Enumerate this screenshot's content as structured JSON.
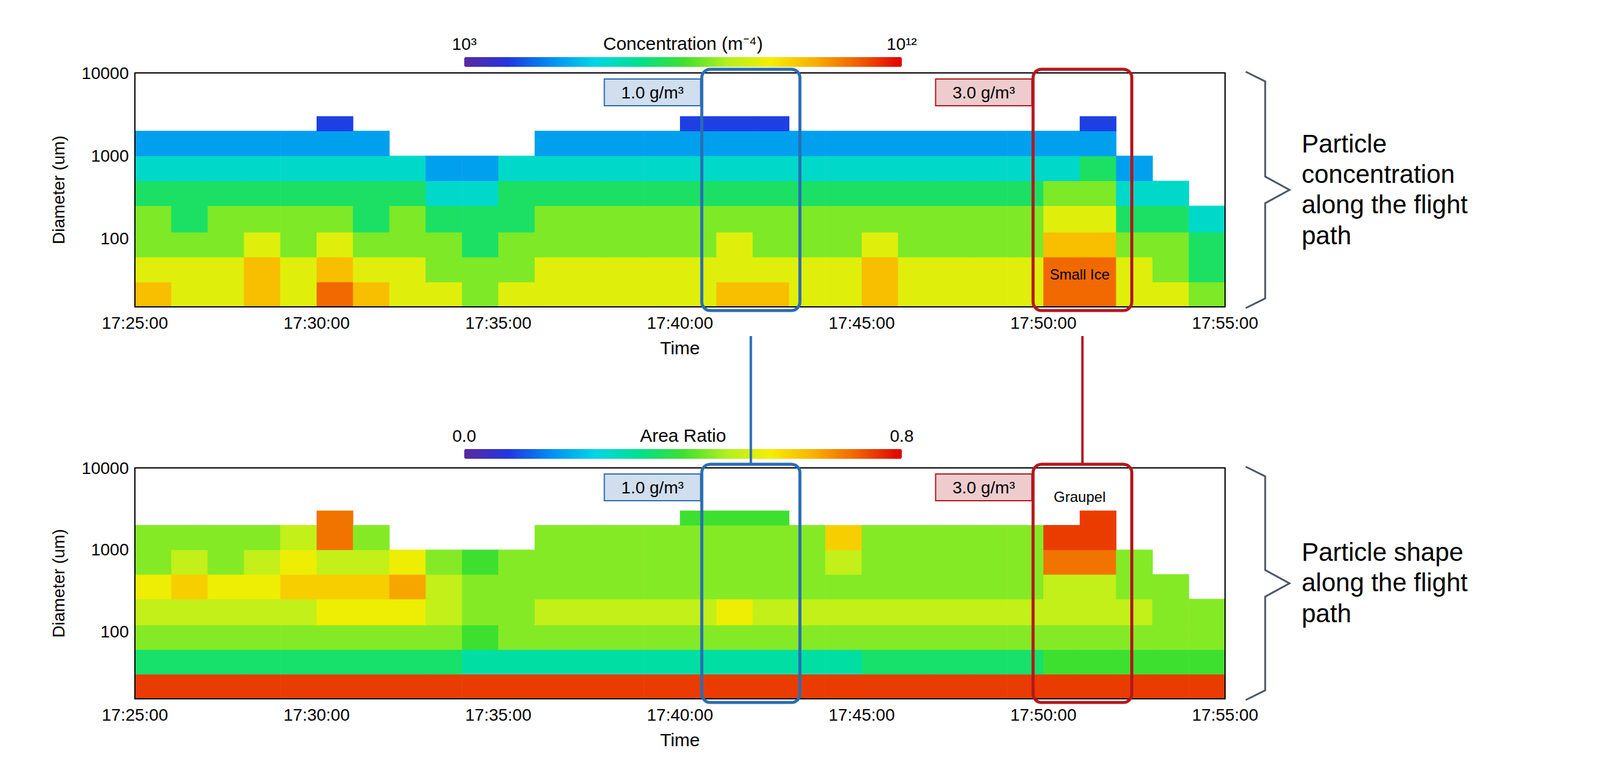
{
  "chart_data": [
    {
      "type": "heatmap",
      "side_label": "Particle concentration along the flight path",
      "x_label": "Time",
      "y_label": "Diameter (um)",
      "log": "y",
      "xlim": [
        "17:25:00",
        "17:55:00"
      ],
      "xticks": [
        "17:25:00",
        "17:30:00",
        "17:35:00",
        "17:40:00",
        "17:45:00",
        "17:50:00",
        "17:55:00"
      ],
      "ylim": [
        15,
        10000
      ],
      "yticks": [
        100,
        1000,
        10000
      ],
      "colorbar": {
        "title": "Concentration (m⁻⁴)",
        "log": true,
        "range": [
          1000,
          1000000000000.0
        ],
        "ticks": [
          {
            "value": 1000,
            "label": "10³"
          },
          {
            "value": 1000000000000.0,
            "label": "10¹²"
          }
        ]
      },
      "x_bins": [
        "17:25:00",
        "17:26:00",
        "17:27:00",
        "17:28:00",
        "17:29:00",
        "17:30:00",
        "17:31:00",
        "17:32:00",
        "17:33:00",
        "17:34:00",
        "17:35:00",
        "17:36:00",
        "17:37:00",
        "17:38:00",
        "17:39:00",
        "17:40:00",
        "17:41:00",
        "17:42:00",
        "17:43:00",
        "17:44:00",
        "17:45:00",
        "17:46:00",
        "17:47:00",
        "17:48:00",
        "17:49:00",
        "17:50:00",
        "17:51:00",
        "17:52:00",
        "17:53:00",
        "17:54:00",
        "17:55:00"
      ],
      "y_bins": [
        15,
        30,
        60,
        120,
        250,
        500,
        1000,
        2000,
        3000
      ],
      "cells": [
        [
          10000000000.0,
          1000000000.0,
          100000000.0,
          100000000.0,
          10000000.0,
          1000000.0,
          100000.0,
          null
        ],
        [
          1000000000.0,
          1000000000.0,
          100000000.0,
          10000000.0,
          10000000.0,
          1000000.0,
          100000.0,
          null
        ],
        [
          1000000000.0,
          1000000000.0,
          100000000.0,
          100000000.0,
          10000000.0,
          1000000.0,
          100000.0,
          null
        ],
        [
          10000000000.0,
          10000000000.0,
          1000000000.0,
          100000000.0,
          10000000.0,
          1000000.0,
          100000.0,
          null
        ],
        [
          1000000000.0,
          1000000000.0,
          100000000.0,
          100000000.0,
          10000000.0,
          1000000.0,
          100000.0,
          null
        ],
        [
          100000000000.0,
          10000000000.0,
          1000000000.0,
          100000000.0,
          10000000.0,
          1000000.0,
          100000.0,
          10000.0
        ],
        [
          10000000000.0,
          1000000000.0,
          100000000.0,
          10000000.0,
          10000000.0,
          1000000.0,
          100000.0,
          null
        ],
        [
          1000000000.0,
          1000000000.0,
          100000000.0,
          100000000.0,
          10000000.0,
          1000000.0,
          null,
          null
        ],
        [
          1000000000.0,
          100000000.0,
          100000000.0,
          10000000.0,
          1000000.0,
          100000.0,
          null,
          null
        ],
        [
          100000000.0,
          100000000.0,
          10000000.0,
          10000000.0,
          1000000.0,
          100000.0,
          null,
          null
        ],
        [
          1000000000.0,
          100000000.0,
          100000000.0,
          10000000.0,
          10000000.0,
          1000000.0,
          null,
          null
        ],
        [
          1000000000.0,
          1000000000.0,
          100000000.0,
          100000000.0,
          10000000.0,
          1000000.0,
          100000.0,
          null
        ],
        [
          1000000000.0,
          1000000000.0,
          100000000.0,
          100000000.0,
          10000000.0,
          1000000.0,
          100000.0,
          null
        ],
        [
          1000000000.0,
          1000000000.0,
          100000000.0,
          100000000.0,
          10000000.0,
          1000000.0,
          100000.0,
          null
        ],
        [
          1000000000.0,
          1000000000.0,
          100000000.0,
          100000000.0,
          10000000.0,
          1000000.0,
          100000.0,
          null
        ],
        [
          1000000000.0,
          1000000000.0,
          100000000.0,
          100000000.0,
          10000000.0,
          1000000.0,
          100000.0,
          10000.0
        ],
        [
          10000000000.0,
          1000000000.0,
          1000000000.0,
          100000000.0,
          10000000.0,
          1000000.0,
          100000.0,
          10000.0
        ],
        [
          10000000000.0,
          1000000000.0,
          100000000.0,
          100000000.0,
          10000000.0,
          1000000.0,
          100000.0,
          10000.0
        ],
        [
          1000000000.0,
          1000000000.0,
          100000000.0,
          100000000.0,
          10000000.0,
          1000000.0,
          100000.0,
          null
        ],
        [
          1000000000.0,
          1000000000.0,
          100000000.0,
          100000000.0,
          10000000.0,
          1000000.0,
          100000.0,
          null
        ],
        [
          10000000000.0,
          10000000000.0,
          1000000000.0,
          100000000.0,
          10000000.0,
          1000000.0,
          100000.0,
          null
        ],
        [
          1000000000.0,
          1000000000.0,
          100000000.0,
          100000000.0,
          10000000.0,
          1000000.0,
          100000.0,
          null
        ],
        [
          1000000000.0,
          1000000000.0,
          100000000.0,
          100000000.0,
          10000000.0,
          1000000.0,
          100000.0,
          null
        ],
        [
          1000000000.0,
          1000000000.0,
          100000000.0,
          100000000.0,
          10000000.0,
          1000000.0,
          100000.0,
          null
        ],
        [
          1000000000.0,
          1000000000.0,
          100000000.0,
          100000000.0,
          10000000.0,
          1000000.0,
          100000.0,
          null
        ],
        [
          100000000000.0,
          100000000000.0,
          10000000000.0,
          1000000000.0,
          100000000.0,
          1000000.0,
          100000.0,
          null
        ],
        [
          100000000000.0,
          100000000000.0,
          10000000000.0,
          1000000000.0,
          100000000.0,
          10000000.0,
          100000.0,
          10000.0
        ],
        [
          1000000000.0,
          1000000000.0,
          100000000.0,
          10000000.0,
          1000000.0,
          100000.0,
          null,
          null
        ],
        [
          1000000000.0,
          100000000.0,
          100000000.0,
          10000000.0,
          1000000.0,
          null,
          null,
          null
        ],
        [
          100000000.0,
          10000000.0,
          10000000.0,
          1000000.0,
          null,
          null,
          null,
          null
        ]
      ],
      "boxes": [
        {
          "label": "1.0 g/m³",
          "start": "17:40:36",
          "end": "17:43:18",
          "color": "#2a6db3"
        },
        {
          "label": "3.0 g/m³",
          "start": "17:49:43",
          "end": "17:52:26",
          "color": "#b3181d"
        }
      ],
      "notes": [
        {
          "text": "Small Ice",
          "x": "17:51:00",
          "y": 37
        }
      ]
    },
    {
      "type": "heatmap",
      "side_label": "Particle shape along the flight path",
      "x_label": "Time",
      "y_label": "Diameter (um)",
      "log": "y",
      "xlim": [
        "17:25:00",
        "17:55:00"
      ],
      "xticks": [
        "17:25:00",
        "17:30:00",
        "17:35:00",
        "17:40:00",
        "17:45:00",
        "17:50:00",
        "17:55:00"
      ],
      "ylim": [
        15,
        10000
      ],
      "yticks": [
        100,
        1000,
        10000
      ],
      "colorbar": {
        "title": "Area Ratio",
        "log": false,
        "range": [
          0,
          0.8
        ],
        "ticks": [
          {
            "value": 0,
            "label": "0.0"
          },
          0.8
        ]
      },
      "x_bins": [
        "17:25:00",
        "17:26:00",
        "17:27:00",
        "17:28:00",
        "17:29:00",
        "17:30:00",
        "17:31:00",
        "17:32:00",
        "17:33:00",
        "17:34:00",
        "17:35:00",
        "17:36:00",
        "17:37:00",
        "17:38:00",
        "17:39:00",
        "17:40:00",
        "17:41:00",
        "17:42:00",
        "17:43:00",
        "17:44:00",
        "17:45:00",
        "17:46:00",
        "17:47:00",
        "17:48:00",
        "17:49:00",
        "17:50:00",
        "17:51:00",
        "17:52:00",
        "17:53:00",
        "17:54:00",
        "17:55:00"
      ],
      "y_bins": [
        15,
        30,
        60,
        120,
        250,
        500,
        1000,
        2000,
        3000
      ],
      "cells": [
        [
          0.75,
          0.35,
          0.45,
          0.5,
          0.55,
          0.45,
          0.45,
          null
        ],
        [
          0.75,
          0.35,
          0.45,
          0.5,
          0.6,
          0.5,
          0.45,
          null
        ],
        [
          0.75,
          0.35,
          0.45,
          0.5,
          0.55,
          0.45,
          0.45,
          null
        ],
        [
          0.75,
          0.35,
          0.45,
          0.5,
          0.55,
          0.5,
          0.45,
          null
        ],
        [
          0.75,
          0.35,
          0.45,
          0.5,
          0.6,
          0.55,
          0.5,
          null
        ],
        [
          0.75,
          0.35,
          0.45,
          0.55,
          0.6,
          0.5,
          0.7,
          0.7
        ],
        [
          0.75,
          0.35,
          0.45,
          0.55,
          0.6,
          0.5,
          0.45,
          null
        ],
        [
          0.75,
          0.35,
          0.45,
          0.55,
          0.65,
          0.55,
          null,
          null
        ],
        [
          0.75,
          0.35,
          0.45,
          0.5,
          0.5,
          0.45,
          null,
          null
        ],
        [
          0.75,
          0.3,
          0.4,
          0.45,
          0.45,
          0.4,
          null,
          null
        ],
        [
          0.75,
          0.3,
          0.45,
          0.45,
          0.45,
          0.45,
          null,
          null
        ],
        [
          0.75,
          0.3,
          0.45,
          0.5,
          0.45,
          0.45,
          0.45,
          null
        ],
        [
          0.75,
          0.3,
          0.45,
          0.5,
          0.45,
          0.45,
          0.45,
          null
        ],
        [
          0.75,
          0.3,
          0.45,
          0.5,
          0.45,
          0.45,
          0.45,
          null
        ],
        [
          0.75,
          0.3,
          0.45,
          0.5,
          0.45,
          0.45,
          0.45,
          null
        ],
        [
          0.75,
          0.3,
          0.45,
          0.5,
          0.45,
          0.45,
          0.45,
          0.4
        ],
        [
          0.75,
          0.3,
          0.45,
          0.55,
          0.45,
          0.45,
          0.45,
          0.4
        ],
        [
          0.75,
          0.3,
          0.45,
          0.5,
          0.45,
          0.45,
          0.45,
          0.4
        ],
        [
          0.75,
          0.3,
          0.45,
          0.5,
          0.45,
          0.45,
          0.45,
          null
        ],
        [
          0.75,
          0.3,
          0.45,
          0.5,
          0.45,
          0.5,
          0.6,
          null
        ],
        [
          0.75,
          0.35,
          0.45,
          0.5,
          0.45,
          0.45,
          0.45,
          null
        ],
        [
          0.75,
          0.35,
          0.45,
          0.5,
          0.45,
          0.45,
          0.45,
          null
        ],
        [
          0.75,
          0.35,
          0.45,
          0.5,
          0.45,
          0.45,
          0.45,
          null
        ],
        [
          0.75,
          0.35,
          0.45,
          0.5,
          0.45,
          0.45,
          0.45,
          null
        ],
        [
          0.75,
          0.35,
          0.45,
          0.5,
          0.45,
          0.45,
          0.45,
          null
        ],
        [
          0.75,
          0.4,
          0.45,
          0.5,
          0.5,
          0.7,
          0.75,
          null
        ],
        [
          0.75,
          0.4,
          0.45,
          0.5,
          0.5,
          0.7,
          0.75,
          0.75
        ],
        [
          0.75,
          0.4,
          0.45,
          0.5,
          0.45,
          0.45,
          null,
          null
        ],
        [
          0.75,
          0.4,
          0.45,
          0.45,
          0.45,
          null,
          null,
          null
        ],
        [
          0.75,
          0.4,
          0.45,
          0.45,
          null,
          null,
          null,
          null
        ]
      ],
      "boxes": [
        {
          "label": "1.0 g/m³",
          "start": "17:40:36",
          "end": "17:43:18",
          "color": "#2a6db3"
        },
        {
          "label": "3.0 g/m³",
          "start": "17:49:43",
          "end": "17:52:26",
          "color": "#b3181d"
        }
      ],
      "notes": [
        {
          "text": "Graupel",
          "x": "17:51:00",
          "y": 4400
        }
      ]
    }
  ]
}
